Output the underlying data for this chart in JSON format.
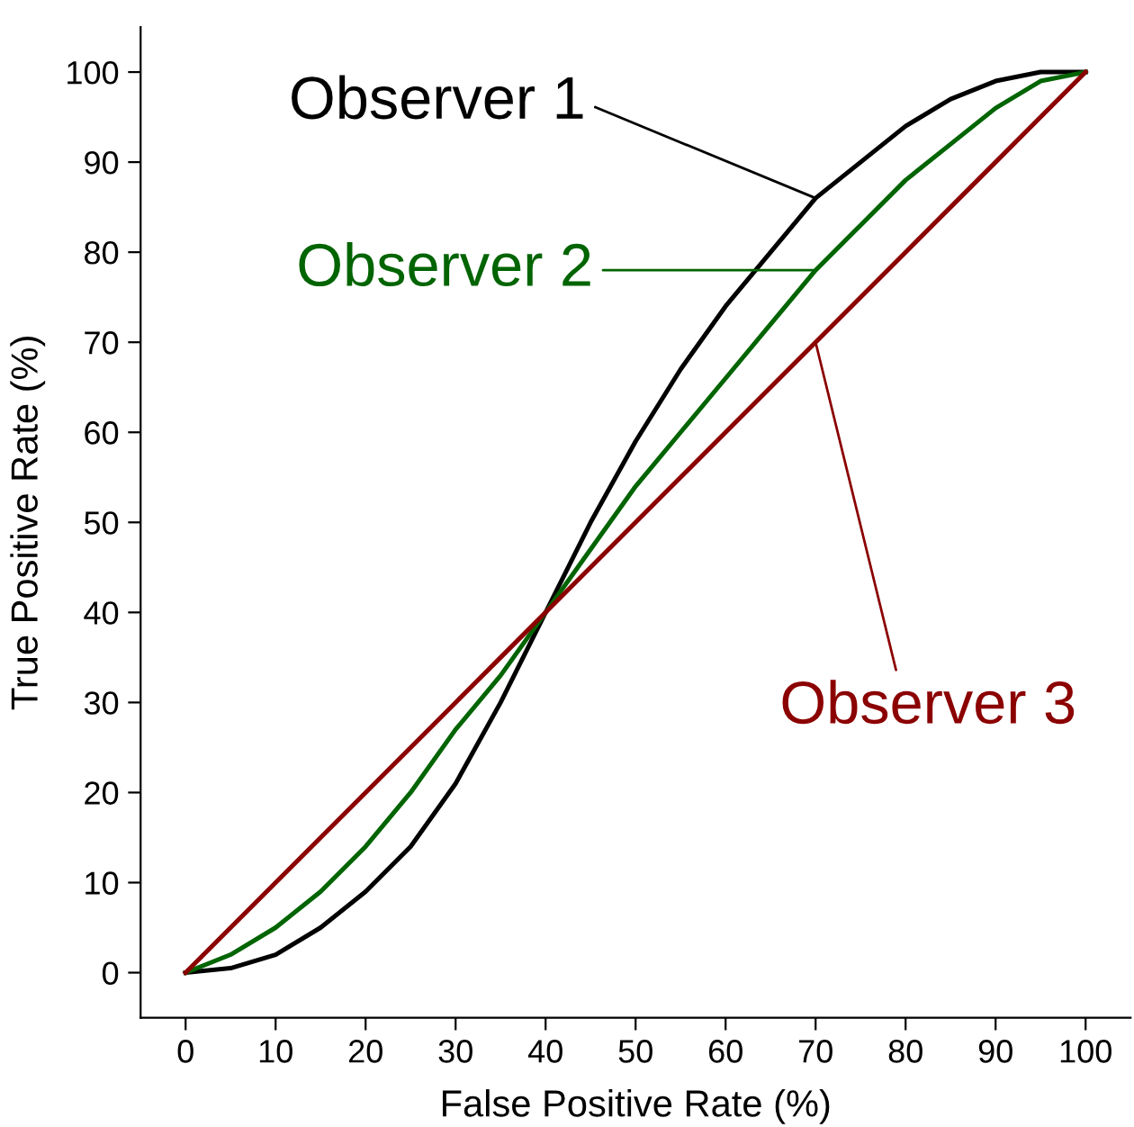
{
  "chart_data": {
    "type": "line",
    "xlabel": "False Positive Rate (%)",
    "ylabel": "True Positive Rate (%)",
    "x": [
      0,
      5,
      10,
      15,
      20,
      25,
      30,
      35,
      40,
      45,
      50,
      55,
      60,
      65,
      70,
      75,
      80,
      85,
      90,
      95,
      100
    ],
    "series": [
      {
        "name": "Observer 1",
        "color": "#000000",
        "values": [
          0,
          0.5,
          2,
          5,
          9,
          14,
          21,
          30,
          40,
          50,
          59,
          67,
          74,
          80,
          86,
          90,
          94,
          97,
          99,
          100,
          100
        ]
      },
      {
        "name": "Observer 2",
        "color": "#006400",
        "values": [
          0,
          2,
          5,
          9,
          14,
          20,
          27,
          33,
          40,
          47,
          54,
          60,
          66,
          72,
          78,
          83,
          88,
          92,
          96,
          99,
          100
        ]
      },
      {
        "name": "Observer 3",
        "color": "#8b0000",
        "values": [
          0,
          5,
          10,
          15,
          20,
          25,
          30,
          35,
          40,
          45,
          50,
          55,
          60,
          65,
          70,
          75,
          80,
          85,
          90,
          95,
          100
        ]
      }
    ],
    "xlim": [
      -5,
      105
    ],
    "ylim": [
      -5,
      105
    ],
    "xticks": [
      0,
      10,
      20,
      30,
      40,
      50,
      60,
      70,
      80,
      90,
      100
    ],
    "yticks": [
      0,
      10,
      20,
      30,
      40,
      50,
      60,
      70,
      80,
      90,
      100
    ],
    "grid": false,
    "legend": "top left",
    "marker": "none",
    "line_style": "solid"
  }
}
